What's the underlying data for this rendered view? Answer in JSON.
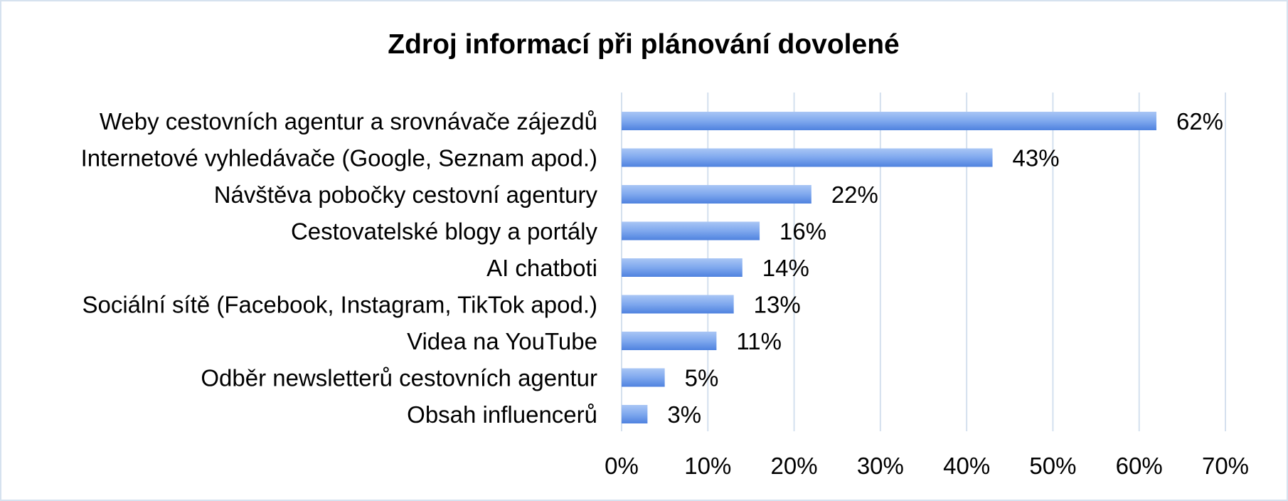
{
  "chart_data": {
    "type": "bar",
    "orientation": "horizontal",
    "title": "Zdroj informací při plánování dovolené",
    "categories": [
      "Weby cestovních agentur a srovnávače zájezdů",
      "Internetové vyhledávače (Google, Seznam apod.)",
      "Návštěva pobočky cestovní agentury",
      "Cestovatelské blogy a portály",
      "AI chatboti",
      "Sociální sítě (Facebook, Instagram, TikTok apod.)",
      "Videa na YouTube",
      "Odběr newsletterů cestovních agentur",
      "Obsah influencerů"
    ],
    "values": [
      62,
      43,
      22,
      16,
      14,
      13,
      11,
      5,
      3
    ],
    "value_labels": [
      "62%",
      "43%",
      "22%",
      "16%",
      "14%",
      "13%",
      "11%",
      "5%",
      "3%"
    ],
    "x_ticks": [
      0,
      10,
      20,
      30,
      40,
      50,
      60,
      70
    ],
    "x_tick_labels": [
      "0%",
      "10%",
      "20%",
      "30%",
      "40%",
      "50%",
      "60%",
      "70%"
    ],
    "xlim": [
      0,
      70
    ],
    "grid": "vertical",
    "legend": "none",
    "bar_color": "#6f9ce8",
    "grid_color": "#d4e0ee"
  }
}
